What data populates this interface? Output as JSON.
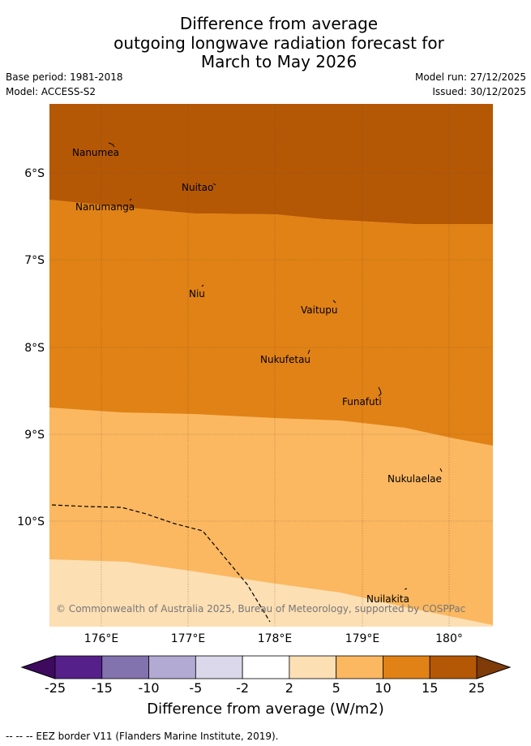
{
  "title": {
    "line1": "Difference from average",
    "line2": "outgoing longwave radiation forecast for",
    "line3": "March to May 2026"
  },
  "meta": {
    "base_period": "Base period: 1981-2018",
    "model": "Model: ACCESS-S2",
    "model_run": "Model run: 27/12/2025",
    "issued": "Issued: 30/12/2025"
  },
  "map": {
    "lat_labels": [
      "6°S",
      "7°S",
      "8°S",
      "9°S",
      "10°S"
    ],
    "lon_labels": [
      "176°E",
      "177°E",
      "178°E",
      "179°E",
      "180°"
    ],
    "places": [
      "Nanumea",
      "Nuitao",
      "Nanumanga",
      "Niu",
      "Vaitupu",
      "Nukufetau",
      "Funafuti",
      "Nukulaelae",
      "Nuilakita"
    ],
    "copyright": "© Commonwealth of Australia 2025, Bureau of Meteorology, supported by COSPPac"
  },
  "colorbar": {
    "ticks": [
      "-25",
      "-15",
      "-10",
      "-5",
      "-2",
      "2",
      "5",
      "10",
      "15",
      "25"
    ],
    "colors": [
      "#552089",
      "#8273af",
      "#b2aad3",
      "#dad8ea",
      "#ffffff",
      "#fddfb4",
      "#fbb861",
      "#e08216",
      "#b45806"
    ],
    "under_color": "#3d0a5e",
    "over_color": "#7f3b08",
    "title": "Difference from average (W/m2)"
  },
  "footer": "--  --  -- EEZ border V11 (Flanders Marine Institute, 2019)."
}
